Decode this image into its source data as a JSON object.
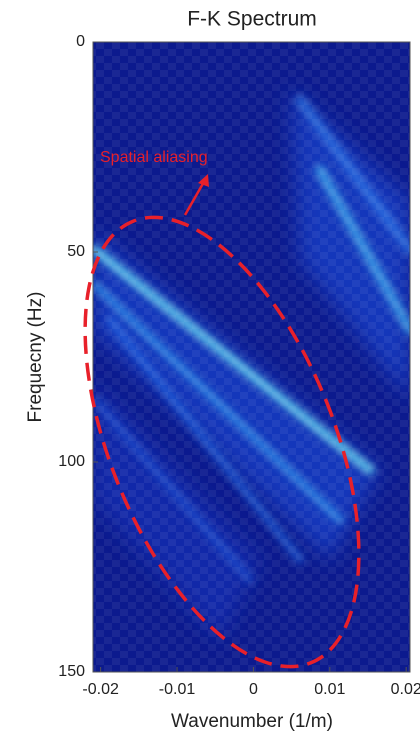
{
  "chart_data": {
    "type": "heatmap",
    "title": "F-K Spectrum",
    "x_label": "Wavenumber (1/m)",
    "y_label": "Frequecny (Hz)",
    "xlim": [
      -0.021,
      0.0205
    ],
    "xticks": [
      -0.02,
      -0.01,
      0,
      0.01,
      0.02
    ],
    "ylim": [
      150,
      0
    ],
    "yticks": [
      0,
      50,
      100,
      150
    ],
    "colormap": "jet",
    "background_color": "#0c1a8e",
    "annotation": "Spatial aliasing",
    "annotation_color": "#e8202a"
  }
}
